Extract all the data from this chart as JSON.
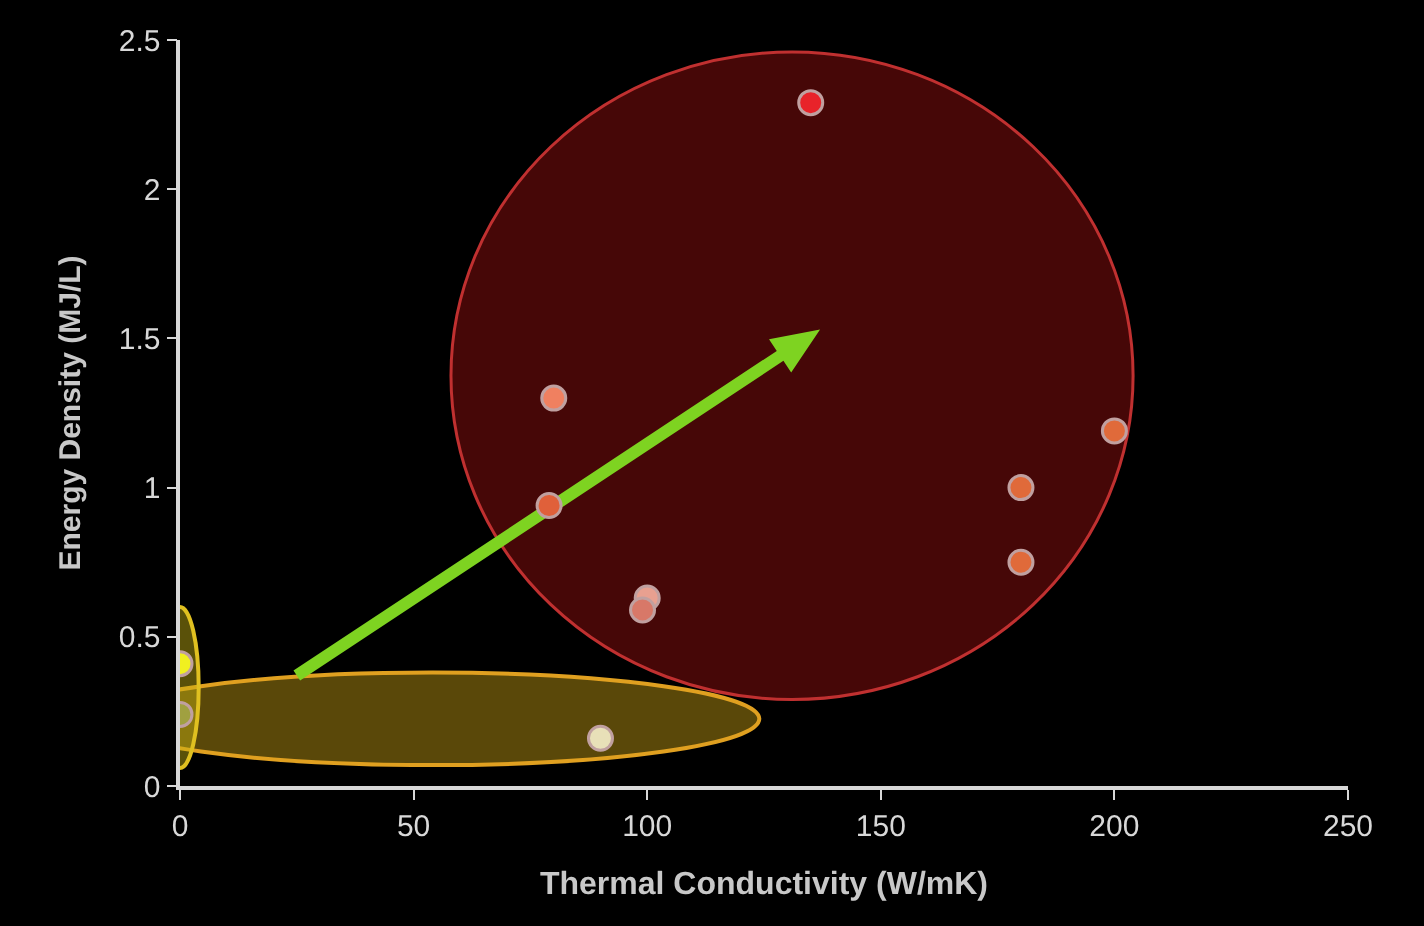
{
  "chart_data": {
    "type": "scatter",
    "xlabel": "Thermal Conductivity (W/mK)",
    "ylabel": "Energy Density (MJ/L)",
    "x": [
      135,
      80,
      79,
      100,
      99,
      180,
      180,
      200,
      0,
      0,
      90
    ],
    "values": [
      2.29,
      1.3,
      0.94,
      0.63,
      0.59,
      1.0,
      0.75,
      1.19,
      0.41,
      0.24,
      0.16
    ],
    "colors": [
      "#e8232a",
      "#f08060",
      "#e0603a",
      "#e8a090",
      "#d87868",
      "#e06a3a",
      "#e06a3a",
      "#e06a3a",
      "#f0f020",
      "#a0a040",
      "#e8e0b8"
    ],
    "xlim": [
      0,
      250
    ],
    "xticks": [
      0,
      50,
      100,
      150,
      200,
      250
    ],
    "ylim": [
      0,
      2.5
    ],
    "yticks": [
      0,
      0.5,
      1,
      1.5,
      2,
      2.5
    ],
    "grid": false,
    "marker": "circle"
  }
}
